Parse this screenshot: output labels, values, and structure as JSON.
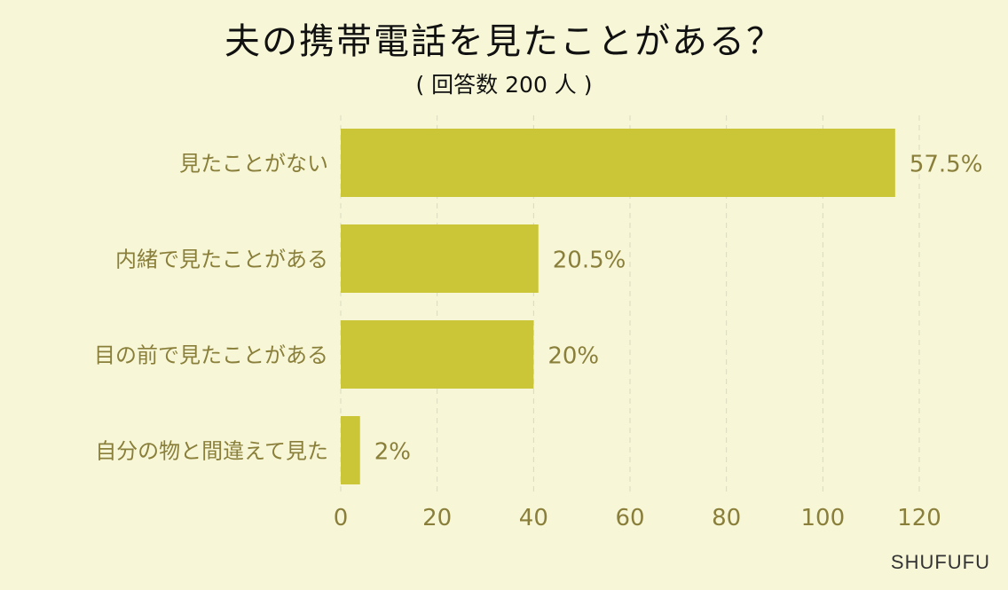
{
  "chart_data": {
    "type": "bar",
    "orientation": "horizontal",
    "title": "夫の携帯電話を見たことがある？",
    "subtitle": "( 回答数 200 人 )",
    "categories": [
      "見たことがない",
      "内緒で見たことがある",
      "目の前で見たことがある",
      "自分の物と間違えて見た"
    ],
    "values": [
      115,
      41,
      40,
      4
    ],
    "data_labels": [
      "57.5%",
      "20.5%",
      "20%",
      "2%"
    ],
    "xlim": [
      0,
      120
    ],
    "xticks": [
      "0",
      "20",
      "40",
      "60",
      "80",
      "100",
      "120"
    ],
    "grid": true,
    "colors": {
      "bar": "#cbc637",
      "label": "#8a7f3a",
      "grid": "#d8d8c0",
      "background": "#f7f7d8"
    }
  },
  "brand": "SHUFUFU"
}
